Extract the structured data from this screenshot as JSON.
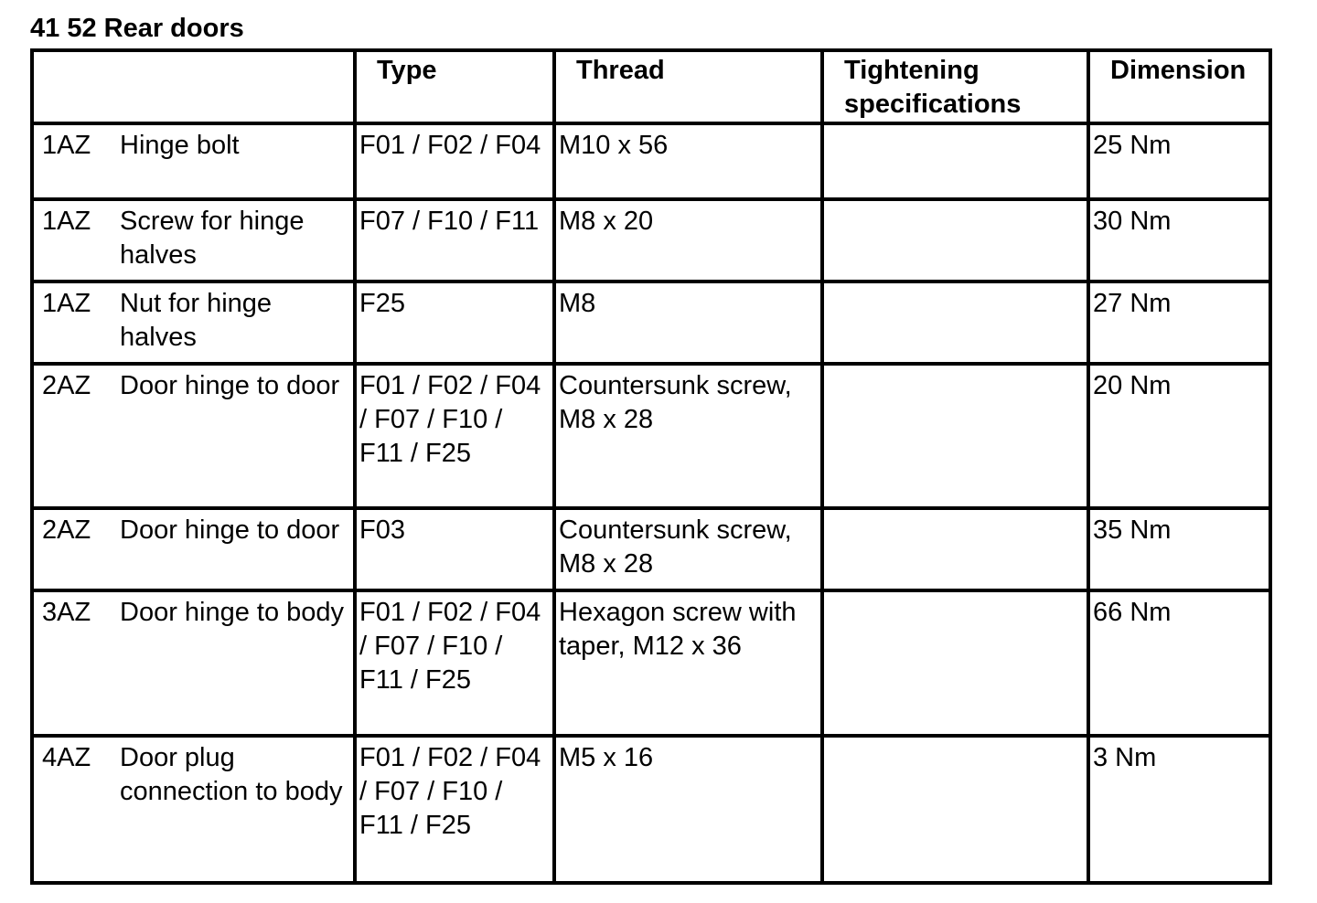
{
  "title": "41 52 Rear doors",
  "headers": [
    "",
    "Type",
    "Thread",
    "Tightening specifications",
    "Dimension"
  ],
  "rows": [
    {
      "code": "1AZ",
      "desc": "Hinge bolt",
      "type": "F01 / F02 / F04",
      "thread": "M10 x 56",
      "spec": "",
      "dim": "25 Nm"
    },
    {
      "code": "1AZ",
      "desc": "Screw for hinge halves",
      "type": "F07 / F10 / F11",
      "thread": "M8 x 20",
      "spec": "",
      "dim": "30 Nm"
    },
    {
      "code": "1AZ",
      "desc": "Nut for hinge halves",
      "type": "F25",
      "thread": "M8",
      "spec": "",
      "dim": "27 Nm"
    },
    {
      "code": "2AZ",
      "desc": "Door hinge to door",
      "type": "F01 / F02 / F04 / F07 / F10 / F11 / F25",
      "thread": "Countersunk screw, M8 x 28",
      "spec": "",
      "dim": "20 Nm"
    },
    {
      "code": "2AZ",
      "desc": "Door hinge to door",
      "type": "F03",
      "thread": "Countersunk screw, M8 x 28",
      "spec": "",
      "dim": "35 Nm"
    },
    {
      "code": "3AZ",
      "desc": "Door hinge to body",
      "type": "F01 / F02 / F04 / F07 / F10 / F11 / F25",
      "thread": "Hexagon screw with taper, M12 x 36",
      "spec": "",
      "dim": "66 Nm"
    },
    {
      "code": "4AZ",
      "desc": "Door plug connection to body",
      "type": "F01 / F02 / F04 / F07 / F10 / F11 / F25",
      "thread": "M5 x 16",
      "spec": "",
      "dim": "3 Nm"
    }
  ]
}
